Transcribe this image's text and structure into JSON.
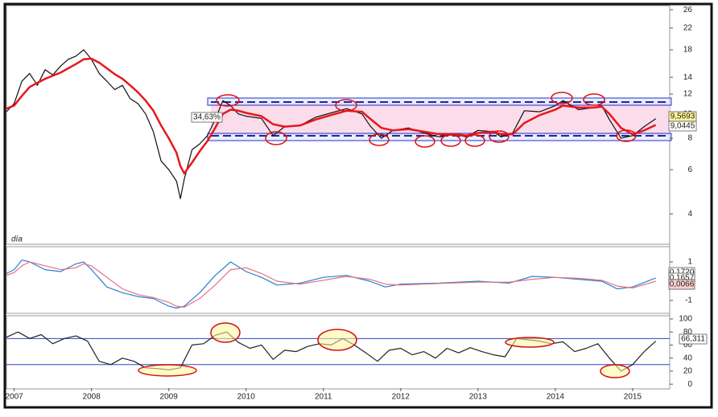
{
  "chart_data": [
    {
      "type": "line",
      "log_scale": true,
      "xlim": [
        2006.9,
        2015.48
      ],
      "ylim": [
        3.05,
        26.8
      ],
      "yticks": [
        4,
        6,
        8,
        10,
        12,
        14,
        18,
        22,
        26
      ],
      "x": [
        2006.9,
        2007.0,
        2007.1,
        2007.2,
        2007.3,
        2007.4,
        2007.5,
        2007.6,
        2007.7,
        2007.8,
        2007.9,
        2008.0,
        2008.1,
        2008.2,
        2008.3,
        2008.4,
        2008.5,
        2008.6,
        2008.7,
        2008.8,
        2008.9,
        2009.0,
        2009.1,
        2009.15,
        2009.2,
        2009.3,
        2009.4,
        2009.5,
        2009.6,
        2009.7,
        2009.8,
        2009.9,
        2010.0,
        2010.2,
        2010.35,
        2010.5,
        2010.7,
        2010.9,
        2011.1,
        2011.3,
        2011.5,
        2011.6,
        2011.75,
        2011.9,
        2012.1,
        2012.3,
        2012.5,
        2012.7,
        2012.85,
        2013.0,
        2013.2,
        2013.3,
        2013.45,
        2013.6,
        2013.8,
        2014.0,
        2014.1,
        2014.3,
        2014.5,
        2014.6,
        2014.7,
        2014.85,
        2015.0,
        2015.15,
        2015.3
      ],
      "series": [
        {
          "color": "#111111",
          "values": [
            10.2,
            11,
            13.5,
            14.5,
            13,
            15,
            14.3,
            15.5,
            16.5,
            17,
            18,
            16.5,
            14.5,
            13.5,
            12.5,
            13,
            11.5,
            11,
            10,
            8.5,
            6.5,
            6,
            5.4,
            4.6,
            5.5,
            7.2,
            7.6,
            8.2,
            9.5,
            11.3,
            10.8,
            10,
            9.8,
            9.6,
            8.2,
            8.9,
            9,
            9.7,
            10.1,
            10.5,
            10,
            9,
            8,
            8.6,
            8.8,
            8.4,
            8.1,
            8.3,
            8.1,
            8.6,
            8.5,
            8.1,
            8.4,
            10.3,
            10.2,
            10.8,
            11.3,
            10.4,
            10.6,
            10.8,
            9.5,
            8,
            8.2,
            8.9,
            9.57
          ]
        },
        {
          "color": "#e8161c",
          "values": [
            10.5,
            10.8,
            11.8,
            12.8,
            13.3,
            13.8,
            14.2,
            14.6,
            15.2,
            15.8,
            16.5,
            16.6,
            16,
            15.2,
            14.4,
            13.8,
            13,
            12.2,
            11.3,
            10.3,
            9,
            8,
            7,
            6.2,
            5.8,
            6.4,
            7.1,
            7.8,
            8.8,
            10,
            10.4,
            10.3,
            10.1,
            9.8,
            9.1,
            8.9,
            9,
            9.5,
            9.9,
            10.3,
            10.2,
            9.6,
            8.8,
            8.6,
            8.7,
            8.5,
            8.3,
            8.3,
            8.2,
            8.4,
            8.5,
            8.3,
            8.3,
            9.2,
            9.9,
            10.4,
            10.8,
            10.6,
            10.6,
            10.7,
            10,
            8.8,
            8.3,
            8.6,
            9.04
          ]
        }
      ],
      "annotations": [
        "34,63%",
        "9,5693",
        "9,0445",
        "día"
      ]
    },
    {
      "type": "line",
      "xlim": [
        2006.9,
        2015.48
      ],
      "ylim": [
        -1.67,
        1.75
      ],
      "yticks": [
        -1,
        1
      ],
      "x": [
        2006.9,
        2007.0,
        2007.1,
        2007.2,
        2007.4,
        2007.6,
        2007.8,
        2007.9,
        2008.0,
        2008.2,
        2008.4,
        2008.6,
        2008.8,
        2009.0,
        2009.1,
        2009.2,
        2009.4,
        2009.6,
        2009.8,
        2010.0,
        2010.2,
        2010.4,
        2010.7,
        2011.0,
        2011.3,
        2011.6,
        2011.8,
        2012.0,
        2012.5,
        2013.0,
        2013.4,
        2013.7,
        2014.0,
        2014.3,
        2014.6,
        2014.8,
        2015.0,
        2015.3
      ],
      "series": [
        {
          "color": "#2a7fd4",
          "values": [
            0.4,
            0.6,
            1.1,
            1.0,
            0.6,
            0.5,
            0.9,
            1.0,
            0.6,
            -0.3,
            -0.6,
            -0.8,
            -0.9,
            -1.3,
            -1.4,
            -1.3,
            -0.6,
            0.3,
            1.0,
            0.5,
            0.2,
            -0.2,
            -0.1,
            0.2,
            0.3,
            0.0,
            -0.3,
            -0.15,
            -0.1,
            0.0,
            -0.1,
            0.25,
            0.2,
            0.1,
            0.0,
            -0.4,
            -0.3,
            0.17
          ]
        },
        {
          "color": "#e8707a",
          "values": [
            0.3,
            0.45,
            0.8,
            1.0,
            0.8,
            0.6,
            0.7,
            0.9,
            0.8,
            0.2,
            -0.4,
            -0.7,
            -0.85,
            -1.1,
            -1.3,
            -1.35,
            -0.9,
            -0.2,
            0.6,
            0.7,
            0.4,
            0.0,
            -0.15,
            0.05,
            0.25,
            0.1,
            -0.15,
            -0.2,
            -0.12,
            -0.05,
            -0.05,
            0.1,
            0.2,
            0.15,
            0.05,
            -0.25,
            -0.35,
            0.0
          ]
        }
      ],
      "annotations": [
        "0,1720",
        "0,1657",
        "0,0066"
      ]
    },
    {
      "type": "line",
      "xlim": [
        2006.9,
        2015.48
      ],
      "ylim": [
        -6,
        104.9
      ],
      "yticks": [
        0,
        20,
        40,
        60,
        80,
        100
      ],
      "xticks": [
        2007,
        2008,
        2009,
        2010,
        2011,
        2012,
        2013,
        2014,
        2015
      ],
      "reference_lines": [
        70,
        30
      ],
      "x": [
        2006.9,
        2007.05,
        2007.2,
        2007.35,
        2007.5,
        2007.65,
        2007.8,
        2007.95,
        2008.1,
        2008.25,
        2008.4,
        2008.55,
        2008.7,
        2008.85,
        2009.0,
        2009.15,
        2009.3,
        2009.45,
        2009.6,
        2009.75,
        2009.9,
        2010.05,
        2010.2,
        2010.35,
        2010.5,
        2010.65,
        2010.8,
        2010.95,
        2011.1,
        2011.25,
        2011.4,
        2011.55,
        2011.7,
        2011.85,
        2012.0,
        2012.15,
        2012.3,
        2012.45,
        2012.6,
        2012.75,
        2012.9,
        2013.05,
        2013.2,
        2013.35,
        2013.5,
        2013.65,
        2013.8,
        2013.95,
        2014.1,
        2014.25,
        2014.4,
        2014.55,
        2014.7,
        2014.85,
        2015.0,
        2015.15,
        2015.3
      ],
      "series": [
        {
          "color": "#222222",
          "values": [
            72,
            80,
            70,
            76,
            62,
            70,
            74,
            66,
            35,
            30,
            40,
            35,
            25,
            24,
            22,
            25,
            60,
            62,
            75,
            80,
            64,
            55,
            60,
            38,
            52,
            50,
            58,
            62,
            60,
            70,
            60,
            48,
            35,
            52,
            55,
            45,
            50,
            40,
            55,
            48,
            56,
            50,
            45,
            42,
            70,
            68,
            66,
            62,
            65,
            50,
            55,
            62,
            40,
            20,
            30,
            50,
            66
          ]
        }
      ],
      "annotations": [
        "66,311"
      ]
    }
  ]
}
